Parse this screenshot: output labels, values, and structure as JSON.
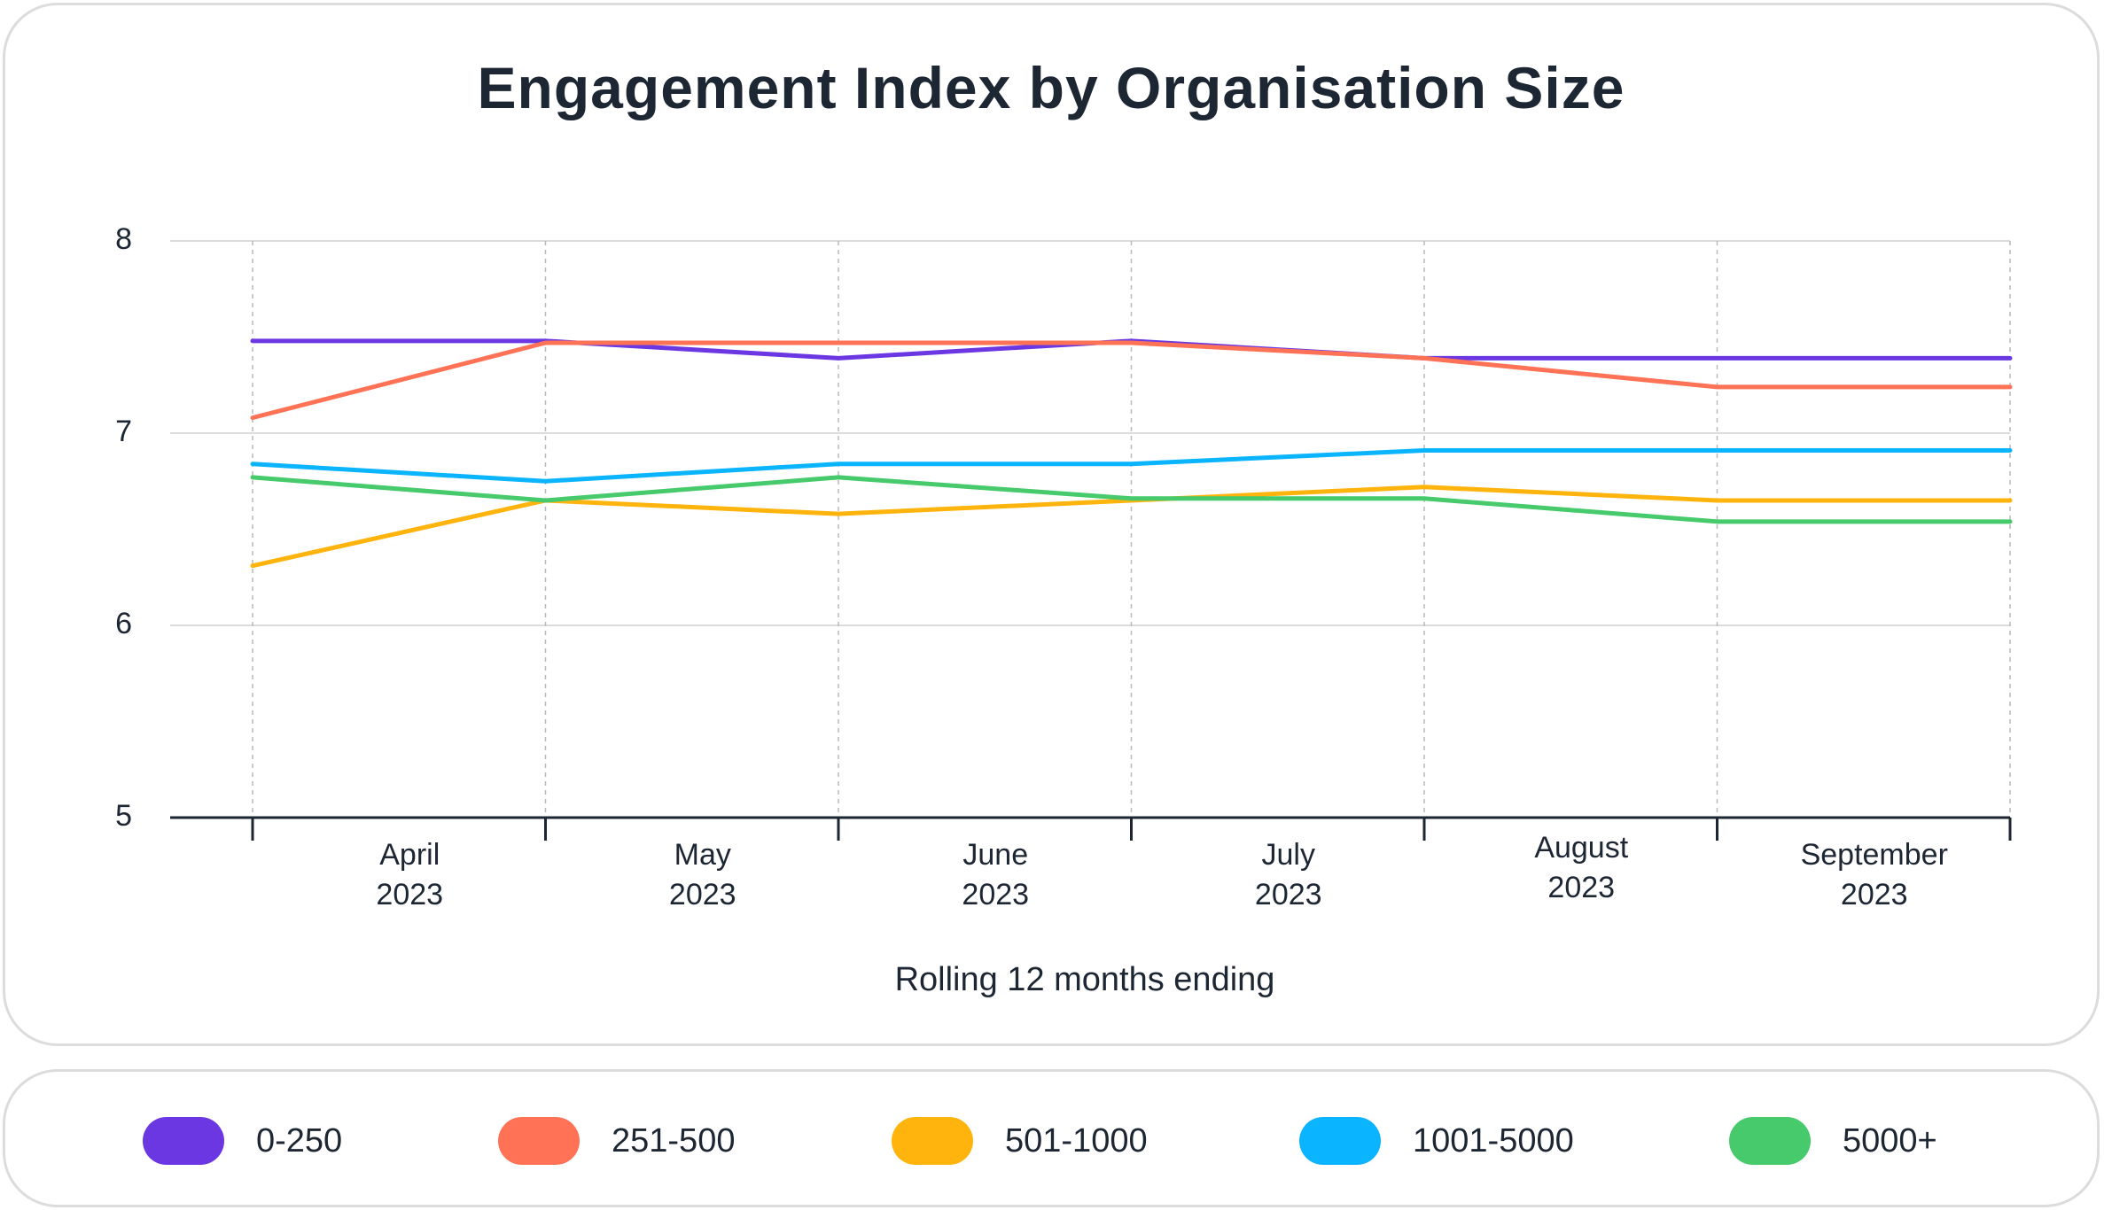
{
  "chart_data": {
    "type": "line",
    "title": "Engagement Index by Organisation Size",
    "xlabel": "Rolling 12 months ending",
    "ylabel": "",
    "ylim": [
      5,
      8
    ],
    "yticks": [
      "5",
      "6",
      "7",
      "8"
    ],
    "categories": [
      [
        "April",
        "2023"
      ],
      [
        "May",
        "2023"
      ],
      [
        "June",
        "2023"
      ],
      [
        "July",
        "2023"
      ],
      [
        "August",
        "2023"
      ],
      [
        "September",
        "2023"
      ]
    ],
    "x": [
      0,
      1,
      2,
      3,
      4,
      5,
      6
    ],
    "series": [
      {
        "name": "0-250",
        "color": "#6b37e2",
        "values": [
          7.48,
          7.48,
          7.39,
          7.48,
          7.39,
          7.39,
          7.39
        ]
      },
      {
        "name": "251-500",
        "color": "#ff7256",
        "values": [
          7.08,
          7.47,
          7.47,
          7.47,
          7.39,
          7.24,
          7.24
        ]
      },
      {
        "name": "501-1000",
        "color": "#ffb40d",
        "values": [
          6.31,
          6.65,
          6.58,
          6.65,
          6.72,
          6.65,
          6.65
        ]
      },
      {
        "name": "1001-5000",
        "color": "#0ab4ff",
        "values": [
          6.84,
          6.75,
          6.84,
          6.84,
          6.91,
          6.91,
          6.91
        ]
      },
      {
        "name": "5000+",
        "color": "#46ca6b",
        "values": [
          6.77,
          6.65,
          6.77,
          6.66,
          6.66,
          6.54,
          6.54
        ]
      }
    ],
    "grid": true
  },
  "legend": {
    "items": [
      {
        "label": "0-250",
        "color": "#6b37e2"
      },
      {
        "label": "251-500",
        "color": "#ff7256"
      },
      {
        "label": "501-1000",
        "color": "#ffb40d"
      },
      {
        "label": "1001-5000",
        "color": "#0ab4ff"
      },
      {
        "label": "5000+",
        "color": "#46ca6b"
      }
    ]
  }
}
